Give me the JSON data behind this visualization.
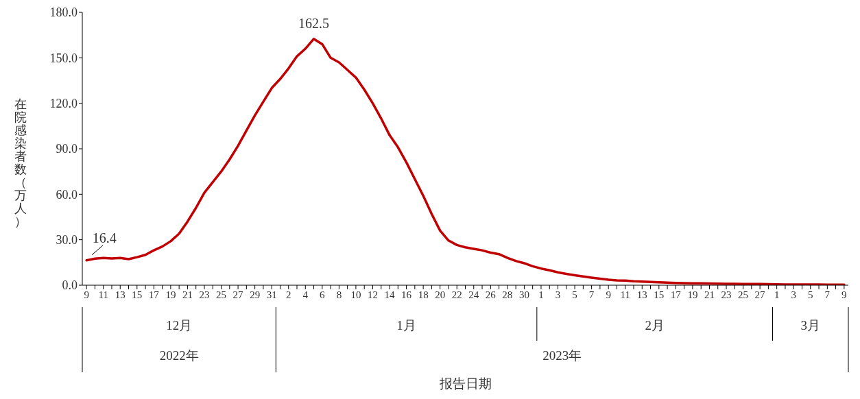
{
  "chart_data": {
    "type": "line",
    "ylabel": "在院感染者数（万人）",
    "x": [
      "2022-12-09",
      "2022-12-10",
      "2022-12-11",
      "2022-12-12",
      "2022-12-13",
      "2022-12-14",
      "2022-12-15",
      "2022-12-16",
      "2022-12-17",
      "2022-12-18",
      "2022-12-19",
      "2022-12-20",
      "2022-12-21",
      "2022-12-22",
      "2022-12-23",
      "2022-12-24",
      "2022-12-25",
      "2022-12-26",
      "2022-12-27",
      "2022-12-28",
      "2022-12-29",
      "2022-12-30",
      "2022-12-31",
      "2023-01-01",
      "2023-01-02",
      "2023-01-03",
      "2023-01-04",
      "2023-01-05",
      "2023-01-06",
      "2023-01-07",
      "2023-01-08",
      "2023-01-09",
      "2023-01-10",
      "2023-01-11",
      "2023-01-12",
      "2023-01-13",
      "2023-01-14",
      "2023-01-15",
      "2023-01-16",
      "2023-01-17",
      "2023-01-18",
      "2023-01-19",
      "2023-01-20",
      "2023-01-21",
      "2023-01-22",
      "2023-01-23",
      "2023-01-24",
      "2023-01-25",
      "2023-01-26",
      "2023-01-27",
      "2023-01-28",
      "2023-01-29",
      "2023-01-30",
      "2023-01-31",
      "2023-02-01",
      "2023-02-02",
      "2023-02-03",
      "2023-02-04",
      "2023-02-05",
      "2023-02-06",
      "2023-02-07",
      "2023-02-08",
      "2023-02-09",
      "2023-02-10",
      "2023-02-11",
      "2023-02-12",
      "2023-02-13",
      "2023-02-14",
      "2023-02-15",
      "2023-02-16",
      "2023-02-17",
      "2023-02-18",
      "2023-02-19",
      "2023-02-20",
      "2023-02-21",
      "2023-02-22",
      "2023-02-23",
      "2023-02-24",
      "2023-02-25",
      "2023-02-26",
      "2023-02-27",
      "2023-02-28",
      "2023-03-01",
      "2023-03-02",
      "2023-03-03",
      "2023-03-04",
      "2023-03-05",
      "2023-03-06",
      "2023-03-07",
      "2023-03-08",
      "2023-03-09"
    ],
    "series": [
      {
        "color": "#c00000",
        "values": [
          16.4,
          17.5,
          18.0,
          17.6,
          18.0,
          17.2,
          18.5,
          20.0,
          23.0,
          25.5,
          29.0,
          34.0,
          42.0,
          51.0,
          61.0,
          68.0,
          75.0,
          83.0,
          92.0,
          102.0,
          112.0,
          121.0,
          130.0,
          136.0,
          143.0,
          151.0,
          156.0,
          162.5,
          159.0,
          150.0,
          147.0,
          142.0,
          137.0,
          129.0,
          120.0,
          110.0,
          99.0,
          91.0,
          81.0,
          70.0,
          59.0,
          47.0,
          36.0,
          29.5,
          26.5,
          25.0,
          24.0,
          23.0,
          21.5,
          20.5,
          18.0,
          16.0,
          14.5,
          12.5,
          11.0,
          9.8,
          8.5,
          7.5,
          6.6,
          5.8,
          5.0,
          4.3,
          3.6,
          3.2,
          3.0,
          2.6,
          2.4,
          2.1,
          1.9,
          1.7,
          1.5,
          1.4,
          1.3,
          1.2,
          1.1,
          1.0,
          0.9,
          0.9,
          0.8,
          0.8,
          0.8,
          0.7,
          0.6,
          0.5,
          0.5,
          0.4,
          0.4,
          0.4,
          0.3,
          0.3,
          0.3
        ],
        "value_labels": [
          "16.4",
          null,
          null,
          null,
          null,
          null,
          null,
          null,
          null,
          null,
          null,
          null,
          null,
          null,
          null,
          null,
          null,
          null,
          null,
          null,
          null,
          null,
          null,
          null,
          null,
          null,
          null,
          "162.5",
          null,
          null,
          null,
          null,
          null,
          null,
          null,
          null,
          null,
          null,
          null,
          null,
          null,
          null,
          null,
          null,
          null,
          null,
          null,
          null,
          null,
          null,
          null,
          null,
          null,
          null,
          null,
          null,
          null,
          null,
          null,
          null,
          null,
          null,
          null,
          null,
          null,
          null,
          null,
          null,
          null,
          null,
          null,
          null,
          null,
          null,
          null,
          null,
          null,
          null,
          null,
          null,
          null,
          null,
          null,
          null,
          null,
          null,
          null,
          null,
          null,
          null,
          null
        ]
      }
    ],
    "xlim": [
      "2022-12-08T12:00",
      "2023-03-09T12:00"
    ],
    "xticks": [
      {
        "value": "2022-12-09",
        "label": "9"
      },
      {
        "value": "2022-12-10",
        "label": null
      },
      {
        "value": "2022-12-11",
        "label": "11"
      },
      {
        "value": "2022-12-12",
        "label": null
      },
      {
        "value": "2022-12-13",
        "label": "13"
      },
      {
        "value": "2022-12-14",
        "label": null
      },
      {
        "value": "2022-12-15",
        "label": "15"
      },
      {
        "value": "2022-12-16",
        "label": null
      },
      {
        "value": "2022-12-17",
        "label": "17"
      },
      {
        "value": "2022-12-18",
        "label": null
      },
      {
        "value": "2022-12-19",
        "label": "19"
      },
      {
        "value": "2022-12-20",
        "label": null
      },
      {
        "value": "2022-12-21",
        "label": "21"
      },
      {
        "value": "2022-12-22",
        "label": null
      },
      {
        "value": "2022-12-23",
        "label": "23"
      },
      {
        "value": "2022-12-24",
        "label": null
      },
      {
        "value": "2022-12-25",
        "label": "25"
      },
      {
        "value": "2022-12-26",
        "label": null
      },
      {
        "value": "2022-12-27",
        "label": "27"
      },
      {
        "value": "2022-12-28",
        "label": null
      },
      {
        "value": "2022-12-29",
        "label": "29"
      },
      {
        "value": "2022-12-30",
        "label": null
      },
      {
        "value": "2022-12-31",
        "label": "31"
      },
      {
        "value": "2023-01-01",
        "label": null
      },
      {
        "value": "2023-01-02",
        "label": "2"
      },
      {
        "value": "2023-01-03",
        "label": null
      },
      {
        "value": "2023-01-04",
        "label": "4"
      },
      {
        "value": "2023-01-05",
        "label": null
      },
      {
        "value": "2023-01-06",
        "label": "6"
      },
      {
        "value": "2023-01-07",
        "label": null
      },
      {
        "value": "2023-01-08",
        "label": "8"
      },
      {
        "value": "2023-01-09",
        "label": null
      },
      {
        "value": "2023-01-10",
        "label": "10"
      },
      {
        "value": "2023-01-11",
        "label": null
      },
      {
        "value": "2023-01-12",
        "label": "12"
      },
      {
        "value": "2023-01-13",
        "label": null
      },
      {
        "value": "2023-01-14",
        "label": "14"
      },
      {
        "value": "2023-01-15",
        "label": null
      },
      {
        "value": "2023-01-16",
        "label": "16"
      },
      {
        "value": "2023-01-17",
        "label": null
      },
      {
        "value": "2023-01-18",
        "label": "18"
      },
      {
        "value": "2023-01-19",
        "label": null
      },
      {
        "value": "2023-01-20",
        "label": "20"
      },
      {
        "value": "2023-01-21",
        "label": null
      },
      {
        "value": "2023-01-22",
        "label": "22"
      },
      {
        "value": "2023-01-23",
        "label": null
      },
      {
        "value": "2023-01-24",
        "label": "24"
      },
      {
        "value": "2023-01-25",
        "label": null
      },
      {
        "value": "2023-01-26",
        "label": "26"
      },
      {
        "value": "2023-01-27",
        "label": null
      },
      {
        "value": "2023-01-28",
        "label": "28"
      },
      {
        "value": "2023-01-29",
        "label": null
      },
      {
        "value": "2023-01-30",
        "label": "30"
      },
      {
        "value": "2023-01-31",
        "label": null
      },
      {
        "value": "2023-02-01",
        "label": "1"
      },
      {
        "value": "2023-02-02",
        "label": null
      },
      {
        "value": "2023-02-03",
        "label": "3"
      },
      {
        "value": "2023-02-04",
        "label": null
      },
      {
        "value": "2023-02-05",
        "label": "5"
      },
      {
        "value": "2023-02-06",
        "label": null
      },
      {
        "value": "2023-02-07",
        "label": "7"
      },
      {
        "value": "2023-02-08",
        "label": null
      },
      {
        "value": "2023-02-09",
        "label": "9"
      },
      {
        "value": "2023-02-10",
        "label": null
      },
      {
        "value": "2023-02-11",
        "label": "11"
      },
      {
        "value": "2023-02-12",
        "label": null
      },
      {
        "value": "2023-02-13",
        "label": "13"
      },
      {
        "value": "2023-02-14",
        "label": null
      },
      {
        "value": "2023-02-15",
        "label": "15"
      },
      {
        "value": "2023-02-16",
        "label": null
      },
      {
        "value": "2023-02-17",
        "label": "17"
      },
      {
        "value": "2023-02-18",
        "label": null
      },
      {
        "value": "2023-02-19",
        "label": "19"
      },
      {
        "value": "2023-02-20",
        "label": null
      },
      {
        "value": "2023-02-21",
        "label": "21"
      },
      {
        "value": "2023-02-22",
        "label": null
      },
      {
        "value": "2023-02-23",
        "label": "23"
      },
      {
        "value": "2023-02-24",
        "label": null
      },
      {
        "value": "2023-02-25",
        "label": "25"
      },
      {
        "value": "2023-02-26",
        "label": null
      },
      {
        "value": "2023-02-27",
        "label": "27"
      },
      {
        "value": "2023-02-28",
        "label": null
      },
      {
        "value": "2023-03-01",
        "label": "1"
      },
      {
        "value": "2023-03-02",
        "label": null
      },
      {
        "value": "2023-03-03",
        "label": "3"
      },
      {
        "value": "2023-03-04",
        "label": null
      },
      {
        "value": "2023-03-05",
        "label": "5"
      },
      {
        "value": "2023-03-06",
        "label": null
      },
      {
        "value": "2023-03-07",
        "label": "7"
      },
      {
        "value": "2023-03-08",
        "label": null
      },
      {
        "value": "2023-03-09",
        "label": "9"
      }
    ],
    "ylim": [
      0,
      180
    ],
    "yticks": [
      {
        "value": 0,
        "label": "0.0"
      },
      {
        "value": 30,
        "label": "30.0"
      },
      {
        "value": 60,
        "label": "60.0"
      },
      {
        "value": 90,
        "label": "90.0"
      },
      {
        "value": 120,
        "label": "120.0"
      },
      {
        "value": 150,
        "label": "150.0"
      },
      {
        "value": 180,
        "label": "180.0"
      }
    ],
    "annotations": [
      "12月",
      "1月",
      "2月",
      "3月",
      "2022年",
      "2023年",
      "报告日期"
    ],
    "grid": false,
    "legend": false,
    "marker": "none",
    "line_style": "solid"
  }
}
